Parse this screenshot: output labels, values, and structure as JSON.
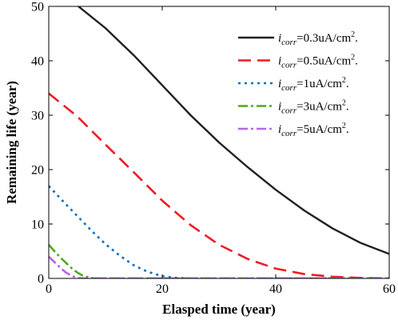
{
  "chart_data": {
    "type": "line",
    "title": "",
    "xlabel": "Elasped time (year)",
    "ylabel": "Remaining life (year)",
    "xlim": [
      0,
      60
    ],
    "ylim": [
      0,
      50
    ],
    "xticks": [
      0,
      20,
      40,
      60
    ],
    "yticks": [
      0,
      10,
      20,
      30,
      40,
      50
    ],
    "xtick_labels": [
      "0",
      "20",
      "40",
      "60"
    ],
    "ytick_labels": [
      "0",
      "10",
      "20",
      "30",
      "40",
      "50"
    ],
    "grid": false,
    "legend_position": "top-right",
    "series": [
      {
        "name": "0.3uA/cm2.",
        "legend": {
          "symbol": "i",
          "sub": "corr",
          "value": "=0.3uA/cm",
          "sup": "2",
          "tail": "."
        },
        "color": "#231f20",
        "dash": "solid",
        "x": [
          0,
          5,
          10,
          15,
          20,
          25,
          30,
          35,
          40,
          45,
          50,
          55,
          60
        ],
        "y": [
          54,
          50.2,
          46,
          41,
          35.5,
          30,
          25,
          20.5,
          16.3,
          12.5,
          9.2,
          6.5,
          4.5
        ]
      },
      {
        "name": "0.5uA/cm2.",
        "legend": {
          "symbol": "i",
          "sub": "corr",
          "value": "=0.5uA/cm",
          "sup": "2",
          "tail": "."
        },
        "color": "#ed1c24",
        "dash": "long-dash",
        "x": [
          0,
          5,
          10,
          15,
          20,
          25,
          30,
          35,
          40,
          45,
          50,
          55,
          60
        ],
        "y": [
          34,
          29.8,
          24.6,
          19.5,
          14.3,
          9.8,
          6.2,
          3.6,
          1.8,
          0.8,
          0.3,
          0.1,
          0
        ]
      },
      {
        "name": "1uA/cm2.",
        "legend": {
          "symbol": "i",
          "sub": "corr",
          "value": "=1uA/cm",
          "sup": "2",
          "tail": "."
        },
        "color": "#0070c0",
        "dash": "dot",
        "x": [
          0,
          2.5,
          5,
          7.5,
          10,
          12.5,
          15,
          17.5,
          20,
          22.5,
          25,
          30,
          40,
          60
        ],
        "y": [
          17,
          14.2,
          11.5,
          8.8,
          6.3,
          4.2,
          2.4,
          1.2,
          0.4,
          0.1,
          0,
          0,
          0,
          0
        ]
      },
      {
        "name": "3uA/cm2.",
        "legend": {
          "symbol": "i",
          "sub": "corr",
          "value": "=3uA/cm",
          "sup": "2",
          "tail": "."
        },
        "color": "#4daa1e",
        "dash": "dash-dot",
        "x": [
          0,
          1,
          2,
          3,
          4,
          5,
          6,
          7,
          8,
          10,
          60
        ],
        "y": [
          6.2,
          5,
          3.9,
          2.9,
          1.9,
          1.1,
          0.5,
          0.2,
          0,
          0,
          0
        ]
      },
      {
        "name": "5uA/cm2.",
        "legend": {
          "symbol": "i",
          "sub": "corr",
          "value": "=5uA/cm",
          "sup": "2",
          "tail": "."
        },
        "color": "#b565e8",
        "dash": "dash-dot",
        "x": [
          0,
          1,
          2,
          3,
          4,
          5,
          6,
          60
        ],
        "y": [
          4,
          3,
          2,
          1.1,
          0.5,
          0.1,
          0,
          0
        ]
      }
    ]
  }
}
